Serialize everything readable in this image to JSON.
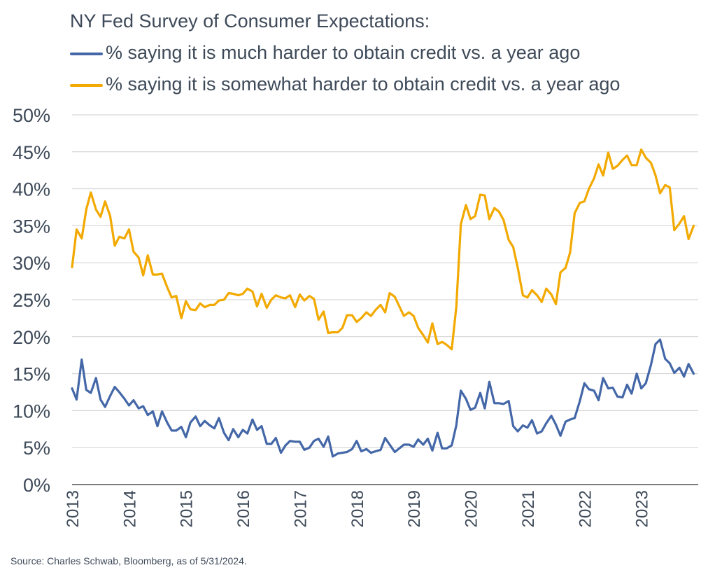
{
  "chart_data": {
    "type": "line",
    "title": "NY Fed Survey of Consumer Expectations:",
    "xlabel": "",
    "ylabel": "",
    "ylim": [
      0,
      50
    ],
    "xlim": [
      2013.0,
      2024.0
    ],
    "y_ticks": [
      "0%",
      "5%",
      "10%",
      "15%",
      "20%",
      "25%",
      "30%",
      "35%",
      "40%",
      "45%",
      "50%"
    ],
    "x_ticks": [
      "2013",
      "2014",
      "2015",
      "2016",
      "2017",
      "2018",
      "2019",
      "2020",
      "2021",
      "2022",
      "2023"
    ],
    "grid": true,
    "legend_position": "top-left",
    "series": [
      {
        "name": "% saying it is much harder to obtain credit vs. a year ago",
        "color": "#4467a8",
        "x": [
          2013.0,
          2013.08,
          2013.17,
          2013.25,
          2013.33,
          2013.42,
          2013.5,
          2013.58,
          2013.67,
          2013.75,
          2013.83,
          2013.92,
          2014.0,
          2014.08,
          2014.17,
          2014.25,
          2014.33,
          2014.42,
          2014.5,
          2014.58,
          2014.67,
          2014.75,
          2014.83,
          2014.92,
          2015.0,
          2015.08,
          2015.17,
          2015.25,
          2015.33,
          2015.42,
          2015.5,
          2015.58,
          2015.67,
          2015.75,
          2015.83,
          2015.92,
          2016.0,
          2016.08,
          2016.17,
          2016.25,
          2016.33,
          2016.42,
          2016.5,
          2016.58,
          2016.67,
          2016.75,
          2016.83,
          2016.92,
          2017.0,
          2017.08,
          2017.17,
          2017.25,
          2017.33,
          2017.42,
          2017.5,
          2017.58,
          2017.67,
          2017.75,
          2017.83,
          2017.92,
          2018.0,
          2018.08,
          2018.17,
          2018.25,
          2018.33,
          2018.42,
          2018.5,
          2018.58,
          2018.67,
          2018.75,
          2018.83,
          2018.92,
          2019.0,
          2019.08,
          2019.17,
          2019.25,
          2019.33,
          2019.42,
          2019.5,
          2019.58,
          2019.67,
          2019.75,
          2019.83,
          2019.92,
          2020.0,
          2020.08,
          2020.17,
          2020.25,
          2020.33,
          2020.42,
          2020.5,
          2020.58,
          2020.67,
          2020.75,
          2020.83,
          2020.92,
          2021.0,
          2021.08,
          2021.17,
          2021.25,
          2021.33,
          2021.42,
          2021.5,
          2021.58,
          2021.67,
          2021.75,
          2021.83,
          2021.92,
          2022.0,
          2022.08,
          2022.17,
          2022.25,
          2022.33,
          2022.42,
          2022.5,
          2022.58,
          2022.67,
          2022.75,
          2022.83,
          2022.92,
          2023.0,
          2023.08,
          2023.17,
          2023.25,
          2023.33,
          2023.42,
          2023.5,
          2023.58,
          2023.67,
          2023.75,
          2023.83,
          2023.92
        ],
        "values": [
          13.0,
          11.5,
          16.9,
          12.8,
          12.4,
          14.4,
          11.5,
          10.5,
          12.0,
          13.2,
          12.5,
          11.6,
          10.7,
          11.4,
          10.3,
          10.6,
          9.4,
          9.9,
          7.9,
          9.9,
          8.4,
          7.3,
          7.3,
          7.8,
          6.4,
          8.4,
          9.2,
          7.9,
          8.6,
          8.0,
          7.6,
          9.0,
          7.0,
          6.0,
          7.5,
          6.4,
          7.4,
          6.9,
          8.8,
          7.4,
          7.9,
          5.5,
          5.5,
          6.3,
          4.3,
          5.3,
          5.9,
          5.8,
          5.8,
          4.7,
          5.0,
          5.9,
          6.2,
          5.1,
          6.5,
          3.8,
          4.2,
          4.3,
          4.4,
          4.8,
          5.9,
          4.5,
          4.8,
          4.3,
          4.5,
          4.7,
          6.3,
          5.4,
          4.4,
          4.9,
          5.4,
          5.4,
          5.1,
          6.1,
          5.4,
          6.2,
          4.6,
          7.0,
          4.9,
          4.9,
          5.3,
          8.0,
          12.7,
          11.6,
          10.1,
          10.4,
          12.4,
          10.3,
          13.9,
          11.0,
          11.0,
          10.9,
          11.3,
          7.9,
          7.2,
          8.0,
          7.7,
          8.7,
          6.9,
          7.2,
          8.3,
          9.3,
          8.1,
          6.6,
          8.5,
          8.8,
          9.0,
          11.3,
          13.7,
          12.9,
          12.7,
          11.4,
          14.4,
          13.0,
          13.1,
          11.9,
          11.8,
          13.5,
          12.3,
          15.0,
          13.0,
          13.7,
          16.2,
          19.0,
          19.6,
          17.0,
          16.4,
          15.1,
          15.8,
          14.6,
          16.3,
          15.0
        ]
      },
      {
        "name": "% saying it is somewhat harder to obtain credit vs. a year ago",
        "color": "#f2a900",
        "x": [
          2013.0,
          2013.08,
          2013.17,
          2013.25,
          2013.33,
          2013.42,
          2013.5,
          2013.58,
          2013.67,
          2013.75,
          2013.83,
          2013.92,
          2014.0,
          2014.08,
          2014.17,
          2014.25,
          2014.33,
          2014.42,
          2014.5,
          2014.58,
          2014.67,
          2014.75,
          2014.83,
          2014.92,
          2015.0,
          2015.08,
          2015.17,
          2015.25,
          2015.33,
          2015.42,
          2015.5,
          2015.58,
          2015.67,
          2015.75,
          2015.83,
          2015.92,
          2016.0,
          2016.08,
          2016.17,
          2016.25,
          2016.33,
          2016.42,
          2016.5,
          2016.58,
          2016.67,
          2016.75,
          2016.83,
          2016.92,
          2017.0,
          2017.08,
          2017.17,
          2017.25,
          2017.33,
          2017.42,
          2017.5,
          2017.58,
          2017.67,
          2017.75,
          2017.83,
          2017.92,
          2018.0,
          2018.08,
          2018.17,
          2018.25,
          2018.33,
          2018.42,
          2018.5,
          2018.58,
          2018.67,
          2018.75,
          2018.83,
          2018.92,
          2019.0,
          2019.08,
          2019.17,
          2019.25,
          2019.33,
          2019.42,
          2019.5,
          2019.58,
          2019.67,
          2019.75,
          2019.83,
          2019.92,
          2020.0,
          2020.08,
          2020.17,
          2020.25,
          2020.33,
          2020.42,
          2020.5,
          2020.58,
          2020.67,
          2020.75,
          2020.83,
          2020.92,
          2021.0,
          2021.08,
          2021.17,
          2021.25,
          2021.33,
          2021.42,
          2021.5,
          2021.58,
          2021.67,
          2021.75,
          2021.83,
          2021.92,
          2022.0,
          2022.08,
          2022.17,
          2022.25,
          2022.33,
          2022.42,
          2022.5,
          2022.58,
          2022.67,
          2022.75,
          2022.83,
          2022.92,
          2023.0,
          2023.08,
          2023.17,
          2023.25,
          2023.33,
          2023.42,
          2023.5,
          2023.58,
          2023.67,
          2023.75,
          2023.83,
          2023.92
        ],
        "values": [
          29.4,
          34.5,
          33.3,
          37.2,
          39.5,
          37.2,
          36.2,
          38.3,
          36.3,
          32.3,
          33.5,
          33.3,
          34.5,
          31.5,
          30.7,
          28.3,
          31.0,
          28.4,
          28.4,
          28.5,
          26.7,
          25.3,
          25.5,
          22.5,
          24.8,
          23.7,
          23.6,
          24.5,
          24.0,
          24.3,
          24.3,
          24.9,
          25.0,
          25.9,
          25.8,
          25.6,
          25.8,
          26.5,
          26.1,
          24.1,
          25.8,
          23.9,
          25.0,
          25.6,
          25.3,
          25.2,
          25.6,
          24.0,
          25.7,
          24.9,
          25.5,
          25.1,
          22.3,
          23.4,
          20.5,
          20.6,
          20.6,
          21.2,
          22.9,
          22.9,
          22.0,
          22.5,
          23.3,
          22.8,
          23.6,
          24.3,
          23.3,
          25.9,
          25.4,
          24.1,
          22.8,
          23.3,
          22.8,
          21.2,
          20.2,
          19.2,
          21.8,
          19.0,
          19.3,
          18.9,
          18.3,
          24.0,
          35.2,
          37.8,
          35.9,
          36.3,
          39.2,
          39.1,
          35.9,
          37.4,
          36.9,
          35.8,
          33.1,
          32.1,
          29.3,
          25.6,
          25.3,
          26.3,
          25.6,
          24.7,
          26.5,
          25.7,
          24.4,
          28.7,
          29.3,
          31.4,
          36.7,
          38.1,
          38.3,
          40.0,
          41.4,
          43.3,
          41.8,
          44.9,
          42.7,
          43.1,
          43.9,
          44.5,
          43.2,
          43.2,
          45.3,
          44.2,
          43.5,
          41.8,
          39.4,
          40.5,
          40.2,
          34.4,
          35.3,
          36.3,
          33.2,
          35.0
        ]
      }
    ]
  },
  "source_note": "Source: Charles Schwab, Bloomberg, as of 5/31/2024."
}
